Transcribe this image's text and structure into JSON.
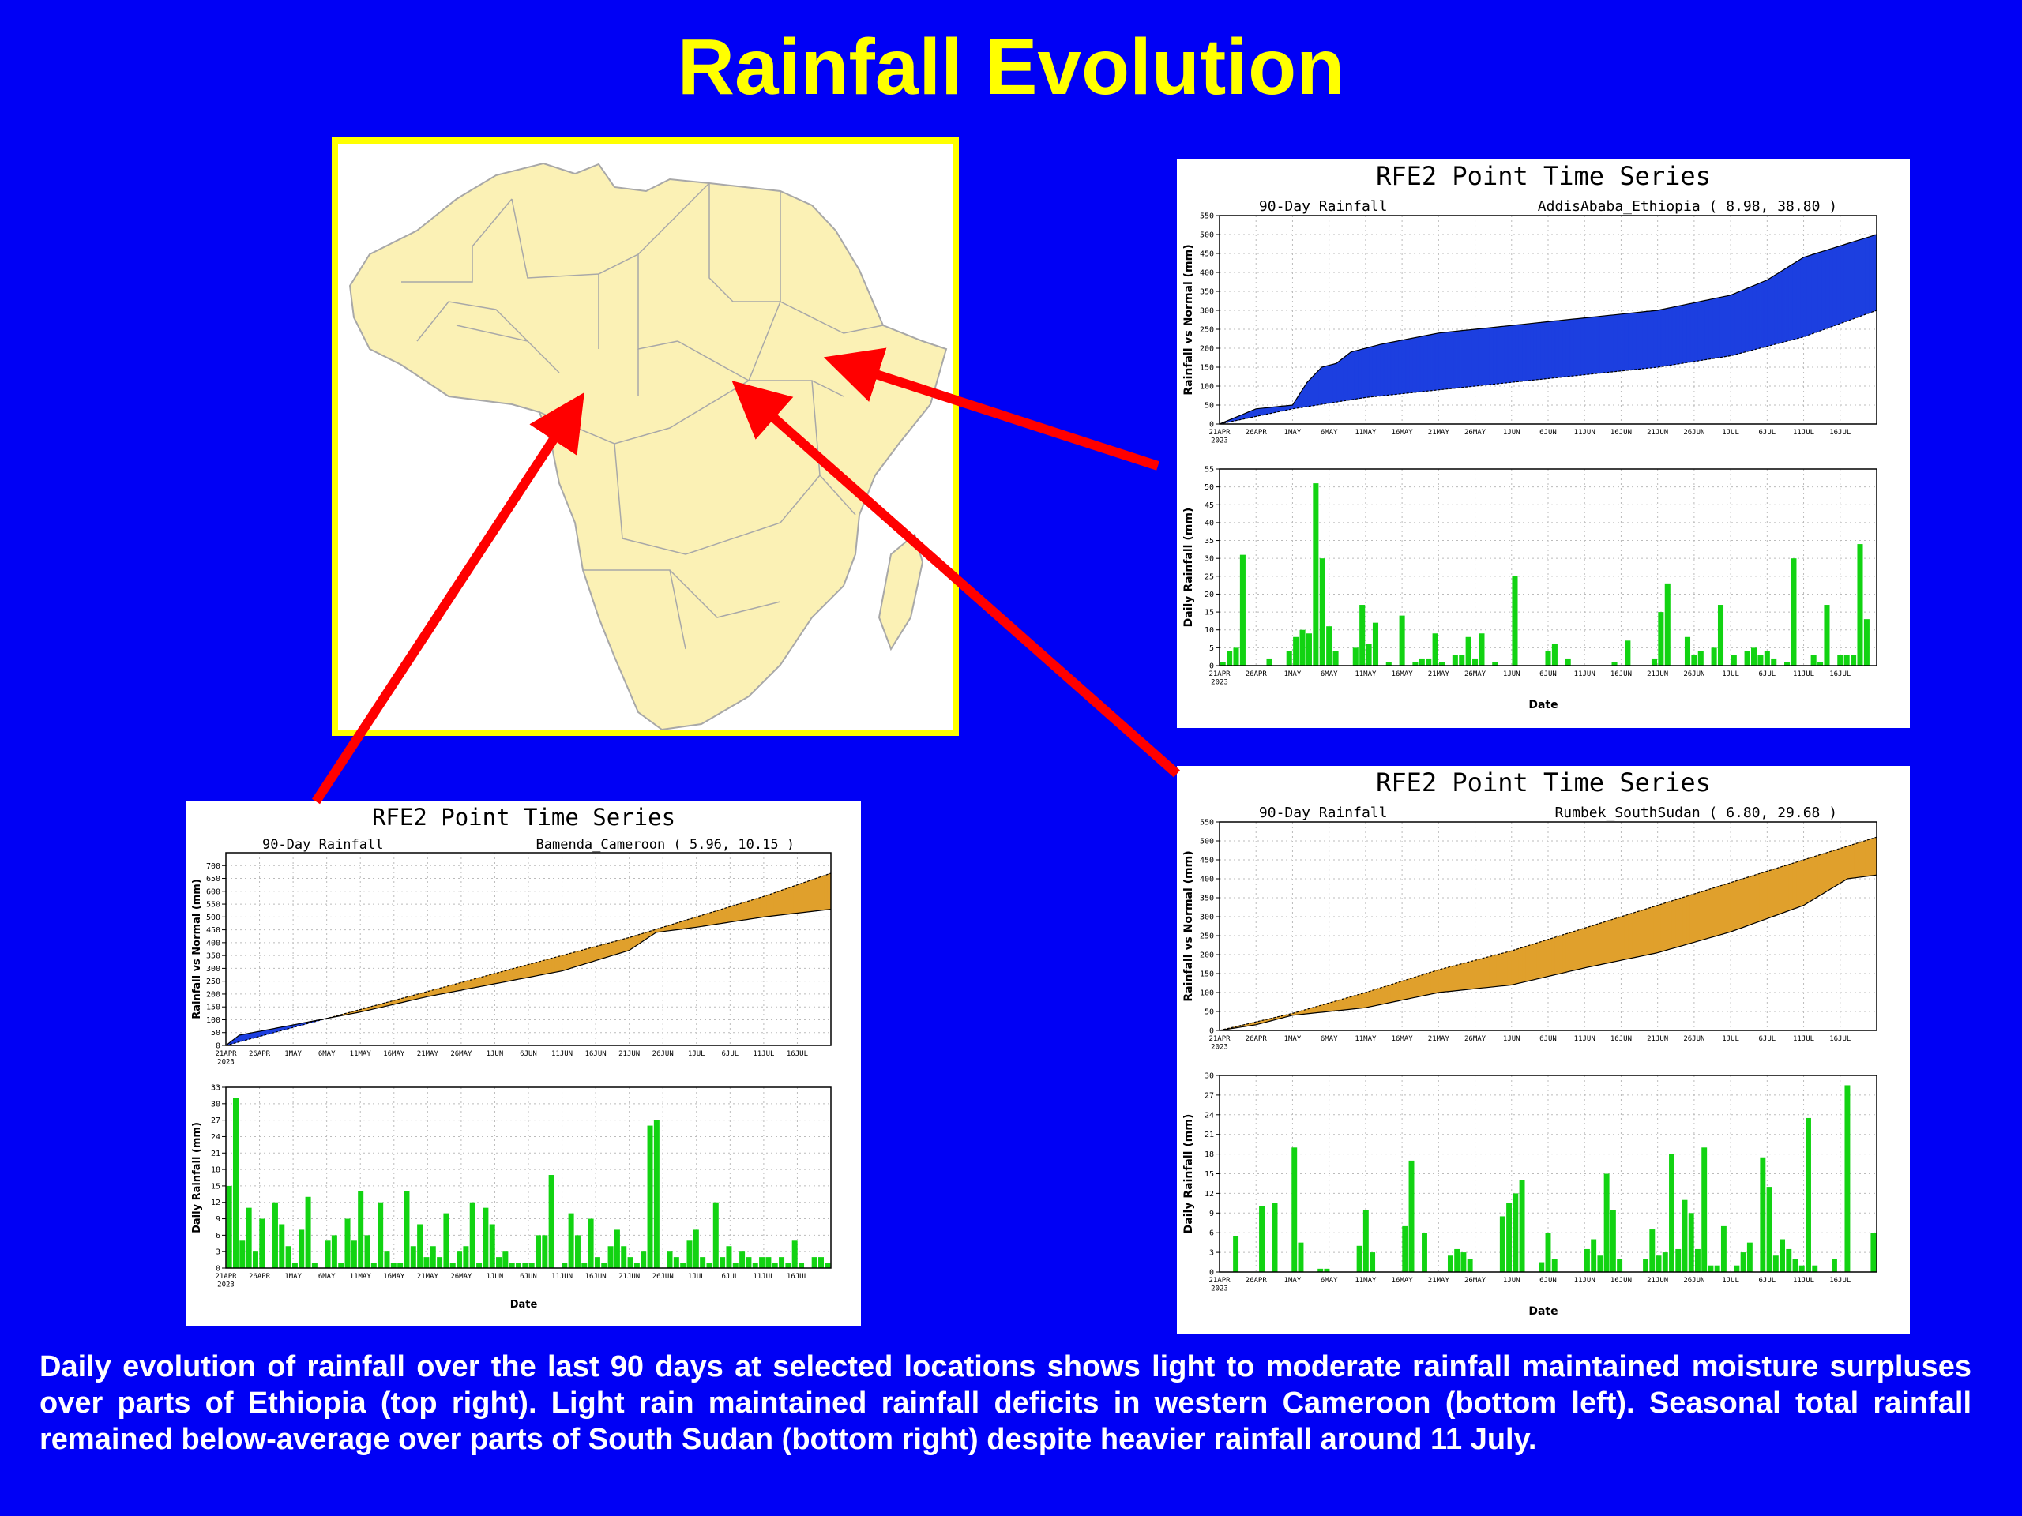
{
  "slide": {
    "title": "Rainfall Evolution",
    "caption": "Daily evolution of rainfall over the last 90 days at selected locations shows light to moderate rainfall maintained moisture surpluses over parts of Ethiopia (top right). Light rain maintained rainfall deficits in western Cameroon (bottom left). Seasonal total rainfall remained below-average over parts of South Sudan (bottom right) despite heavier rainfall around 11 July."
  },
  "colors": {
    "background": "#0000f5",
    "title": "#ffff00",
    "map_frame": "#ffff00",
    "land": "#fbf1b5",
    "arrow": "#ff0000",
    "surplus": "#1c3fe0",
    "deficit": "#e0a02c",
    "daily_bars": "#12d312"
  },
  "map": {
    "name": "Africa"
  },
  "chart_data": [
    {
      "id": "ethiopia",
      "type": "area",
      "title": "RFE2 Point Time Series",
      "subtitle_left": "90-Day Rainfall",
      "location": "AddisAbaba_Ethiopia ( 8.98, 38.80 )",
      "top": {
        "ylabel": "Rainfall vs Normal (mm)",
        "ylim": [
          0,
          550
        ],
        "yticks": [
          0,
          50,
          100,
          150,
          200,
          250,
          300,
          350,
          400,
          450,
          500,
          550
        ],
        "series": [
          {
            "name": "Rainfall",
            "x": [
              0,
              5,
              10,
              12,
              14,
              16,
              18,
              22,
              30,
              40,
              50,
              60,
              70,
              75,
              80,
              90
            ],
            "y": [
              0,
              40,
              50,
              110,
              150,
              160,
              190,
              210,
              240,
              260,
              280,
              300,
              340,
              380,
              440,
              500
            ]
          },
          {
            "name": "Normal",
            "x": [
              0,
              10,
              20,
              30,
              40,
              50,
              60,
              70,
              80,
              90
            ],
            "y": [
              0,
              40,
              70,
              90,
              110,
              130,
              150,
              180,
              230,
              300
            ]
          }
        ]
      },
      "bottom": {
        "ylabel": "Daily Rainfall (mm)",
        "ylim": [
          0,
          55
        ],
        "yticks": [
          0,
          5,
          10,
          15,
          20,
          25,
          30,
          35,
          40,
          45,
          50,
          55
        ],
        "daily": [
          1,
          4,
          5,
          31,
          0,
          0,
          0,
          2,
          0,
          0,
          4,
          8,
          10,
          9,
          51,
          30,
          11,
          4,
          0,
          0,
          5,
          17,
          6,
          12,
          0,
          1,
          0,
          14,
          0,
          1,
          2,
          2,
          9,
          1,
          0,
          3,
          3,
          8,
          2,
          9,
          0,
          1,
          0,
          0,
          25,
          0,
          0,
          0,
          0,
          4,
          6,
          0,
          2,
          0,
          0,
          0,
          0,
          0,
          0,
          1,
          0,
          7,
          0,
          0,
          0,
          2,
          15,
          23,
          0,
          0,
          8,
          3,
          4,
          0,
          5,
          17,
          0,
          3,
          0,
          4,
          5,
          3,
          4,
          2,
          0,
          1,
          30,
          0,
          0,
          3,
          1,
          17,
          0,
          3,
          3,
          3,
          34,
          13,
          0
        ]
      },
      "xlabel": "Date",
      "xticks": [
        "21APR\n2023",
        "26APR",
        "1MAY",
        "6MAY",
        "11MAY",
        "16MAY",
        "21MAY",
        "26MAY",
        "1JUN",
        "6JUN",
        "11JUN",
        "16JUN",
        "21JUN",
        "26JUN",
        "1JUL",
        "6JUL",
        "11JUL",
        "16JUL"
      ]
    },
    {
      "id": "southsudan",
      "type": "area",
      "title": "RFE2 Point Time Series",
      "subtitle_left": "90-Day Rainfall",
      "location": "Rumbek_SouthSudan ( 6.80, 29.68 )",
      "top": {
        "ylabel": "Rainfall vs Normal (mm)",
        "ylim": [
          0,
          550
        ],
        "yticks": [
          0,
          50,
          100,
          150,
          200,
          250,
          300,
          350,
          400,
          450,
          500,
          550
        ],
        "series": [
          {
            "name": "Rainfall",
            "x": [
              0,
              5,
              10,
              20,
              30,
              40,
              50,
              60,
              70,
              80,
              86,
              90
            ],
            "y": [
              0,
              15,
              40,
              60,
              100,
              120,
              165,
              205,
              260,
              330,
              400,
              410
            ]
          },
          {
            "name": "Normal",
            "x": [
              0,
              10,
              20,
              30,
              40,
              50,
              60,
              70,
              80,
              90
            ],
            "y": [
              0,
              45,
              100,
              160,
              210,
              270,
              330,
              390,
              450,
              510
            ]
          }
        ]
      },
      "bottom": {
        "ylabel": "Daily Rainfall (mm)",
        "ylim": [
          0,
          30
        ],
        "yticks": [
          0,
          3,
          6,
          9,
          12,
          15,
          18,
          21,
          24,
          27,
          30
        ],
        "daily": [
          0,
          0,
          5.5,
          0,
          0,
          0,
          10,
          0,
          10.5,
          0,
          0,
          19,
          4.5,
          0,
          0,
          0.5,
          0.5,
          0,
          0,
          0,
          0,
          4,
          9.5,
          3,
          0,
          0,
          0,
          0,
          7,
          17,
          0,
          6,
          0,
          0,
          0,
          2.5,
          3.5,
          3,
          2,
          0,
          0,
          0,
          0,
          8.5,
          10.5,
          12,
          14,
          0,
          0,
          1.5,
          6,
          2,
          0,
          0,
          0,
          0,
          3.5,
          5,
          2.5,
          15,
          9.5,
          2,
          0,
          0,
          0,
          2,
          6.5,
          2.5,
          3,
          18,
          3.5,
          11,
          9,
          3.5,
          19,
          1,
          1,
          7,
          0,
          1,
          3,
          4.5,
          0,
          17.5,
          13,
          2.5,
          5,
          3.5,
          2,
          1,
          23.5,
          1,
          0,
          0,
          2,
          0,
          28.5,
          0,
          0,
          0,
          6
        ]
      },
      "xlabel": "Date",
      "xticks": [
        "21APR\n2023",
        "26APR",
        "1MAY",
        "6MAY",
        "11MAY",
        "16MAY",
        "21MAY",
        "26MAY",
        "1JUN",
        "6JUN",
        "11JUN",
        "16JUN",
        "21JUN",
        "26JUN",
        "1JUL",
        "6JUL",
        "11JUL",
        "16JUL"
      ]
    },
    {
      "id": "cameroon",
      "type": "area",
      "title": "RFE2 Point Time Series",
      "subtitle_left": "90-Day Rainfall",
      "location": "Bamenda_Cameroon ( 5.96, 10.15 )",
      "top": {
        "ylabel": "Rainfall vs Normal (mm)",
        "ylim": [
          0,
          750
        ],
        "yticks": [
          0,
          50,
          100,
          150,
          200,
          250,
          300,
          350,
          400,
          450,
          500,
          550,
          600,
          650,
          700
        ],
        "series": [
          {
            "name": "Rainfall",
            "x": [
              0,
              2,
              6,
              10,
              14,
              20,
              30,
              40,
              50,
              60,
              64,
              70,
              80,
              90
            ],
            "y": [
              0,
              40,
              60,
              80,
              100,
              130,
              190,
              240,
              290,
              370,
              440,
              460,
              500,
              530
            ]
          },
          {
            "name": "Normal",
            "x": [
              0,
              10,
              20,
              30,
              40,
              50,
              60,
              70,
              80,
              90
            ],
            "y": [
              0,
              70,
              140,
              210,
              280,
              350,
              420,
              500,
              580,
              670
            ]
          }
        ]
      },
      "bottom": {
        "ylabel": "Daily Rainfall (mm)",
        "ylim": [
          0,
          33
        ],
        "yticks": [
          0,
          3,
          6,
          9,
          12,
          15,
          18,
          21,
          24,
          27,
          30,
          33
        ],
        "daily": [
          15,
          31,
          5,
          11,
          3,
          9,
          0,
          12,
          8,
          4,
          1,
          7,
          13,
          1,
          0,
          5,
          6,
          1,
          9,
          5,
          14,
          6,
          1,
          12,
          3,
          1,
          1,
          14,
          4,
          8,
          2,
          4,
          2,
          10,
          1,
          3,
          4,
          12,
          1,
          11,
          8,
          2,
          3,
          1,
          1,
          1,
          1,
          6,
          6,
          17,
          0,
          1,
          10,
          6,
          1,
          9,
          2,
          1,
          4,
          7,
          4,
          2,
          1,
          3,
          26,
          27,
          0,
          3,
          2,
          1,
          5,
          7,
          2,
          1,
          12,
          2,
          4,
          1,
          3,
          2,
          1,
          2,
          2,
          1,
          2,
          1,
          5,
          1,
          0,
          2,
          2,
          1
        ]
      },
      "xlabel": "Date",
      "xticks": [
        "21APR\n2023",
        "26APR",
        "1MAY",
        "6MAY",
        "11MAY",
        "16MAY",
        "21MAY",
        "26MAY",
        "1JUN",
        "6JUN",
        "11JUN",
        "16JUN",
        "21JUN",
        "26JUN",
        "1JUL",
        "6JUL",
        "11JUL",
        "16JUL"
      ]
    }
  ]
}
